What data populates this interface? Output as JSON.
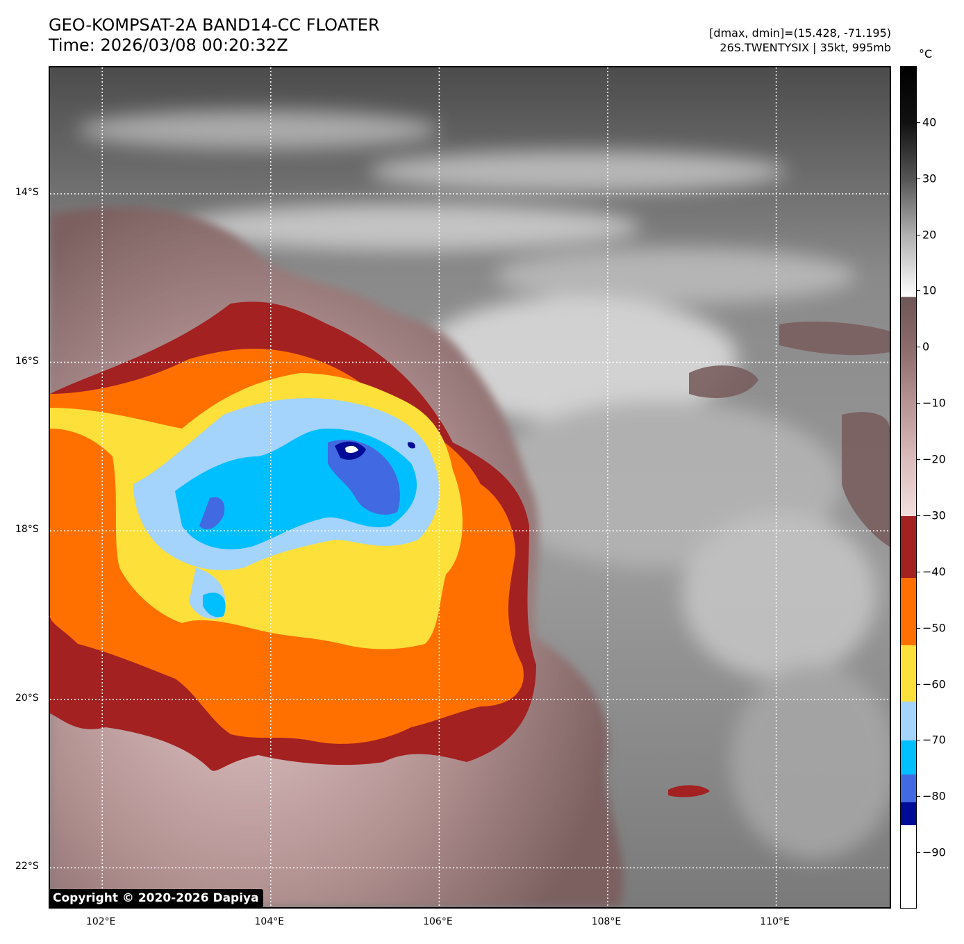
{
  "header": {
    "title_line1": "GEO-KOMPSAT-2A BAND14-CC FLOATER",
    "title_line2": "Time: 2026/03/08 00:20:32Z",
    "info_line1": "[dmax, dmin]=(15.428, -71.195)",
    "info_line2": "26S.TWENTYSIX | 35kt, 995mb"
  },
  "map": {
    "lat_ticks": [
      "14°S",
      "16°S",
      "18°S",
      "20°S",
      "22°S"
    ],
    "lon_ticks": [
      "102°E",
      "104°E",
      "106°E",
      "108°E",
      "110°E"
    ],
    "lat_values": [
      -14,
      -16,
      -18,
      -20,
      -22
    ],
    "lon_values": [
      102,
      104,
      106,
      108,
      110
    ],
    "lon_range": [
      101.38,
      111.38
    ],
    "lat_range": [
      -12.5,
      -22.5
    ],
    "copyright": "Copyright © 2020-2026 Dapiya",
    "storm_center": {
      "lon": 104.9,
      "lat": -17.2
    }
  },
  "colorbar": {
    "unit": "°C",
    "range": [
      -100,
      50
    ],
    "labels": [
      "40",
      "30",
      "20",
      "10",
      "0",
      "−10",
      "−20",
      "−30",
      "−40",
      "−50",
      "−60",
      "−70",
      "−80",
      "−90"
    ],
    "label_values": [
      40,
      30,
      20,
      10,
      0,
      -10,
      -20,
      -30,
      -40,
      -50,
      -60,
      -70,
      -80,
      -90
    ],
    "segments": [
      {
        "from": -100,
        "to": -85,
        "color": "#ffffff"
      },
      {
        "from": -85,
        "to": -81,
        "color": "#000c98"
      },
      {
        "from": -81,
        "to": -76,
        "color": "#4169e1"
      },
      {
        "from": -76,
        "to": -70,
        "color": "#00bfff"
      },
      {
        "from": -70,
        "to": -63,
        "color": "#a4d3fb"
      },
      {
        "from": -63,
        "to": -53,
        "color": "#fde03a"
      },
      {
        "from": -53,
        "to": -41,
        "color": "#ff7000"
      },
      {
        "from": -41,
        "to": -30,
        "color": "#a32121"
      }
    ],
    "gradient": [
      {
        "value": -30,
        "color": "#f2dede"
      },
      {
        "value": -20,
        "color": "#dcbcbc"
      },
      {
        "value": -10,
        "color": "#b89494"
      },
      {
        "value": 0,
        "color": "#8c6b6b"
      },
      {
        "value": 9,
        "color": "#6e5555"
      },
      {
        "value": 9.01,
        "color": "#ffffff"
      },
      {
        "value": 20,
        "color": "#b0b0b0"
      },
      {
        "value": 30,
        "color": "#555555"
      },
      {
        "value": 40,
        "color": "#111111"
      },
      {
        "value": 50,
        "color": "#000000"
      }
    ]
  }
}
